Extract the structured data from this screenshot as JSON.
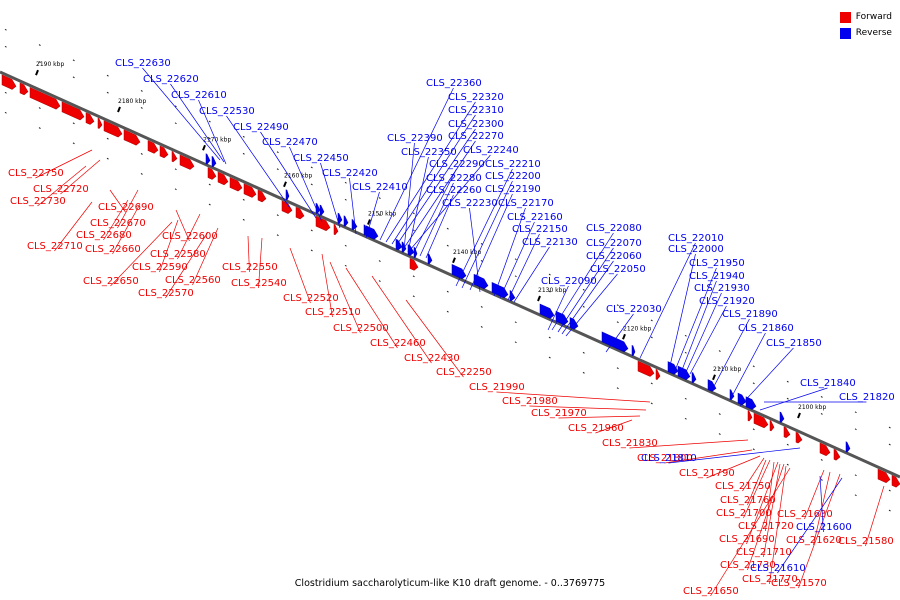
{
  "caption": "Clostridium saccharolyticum-like K10 draft genome. - 0..3769775",
  "legend": [
    {
      "label": "Forward",
      "color": "#ee0000"
    },
    {
      "label": "Reverse",
      "color": "#0000ee"
    }
  ],
  "colors": {
    "forward": "#ee0000",
    "reverse": "#0000ee",
    "backbone": "#555555"
  },
  "kbp_ticks": [
    "2190 kbp",
    "2180 kbp",
    "2170 kbp",
    "2160 kbp",
    "2150 kbp",
    "2140 kbp",
    "2130 kbp",
    "2120 kbp",
    "2110 kbp",
    "2100 kbp"
  ],
  "genes_forward": [
    "CLS_22750",
    "CLS_22720",
    "CLS_22730",
    "CLS_22690",
    "CLS_22670",
    "CLS_22680",
    "CLS_22710",
    "CLS_22660",
    "CLS_22600",
    "CLS_22580",
    "CLS_22590",
    "CLS_22650",
    "CLS_22560",
    "CLS_22570",
    "CLS_22550",
    "CLS_22540",
    "CLS_22520",
    "CLS_22510",
    "CLS_22500",
    "CLS_22460",
    "CLS_22430",
    "CLS_22250",
    "CLS_21990",
    "CLS_21980",
    "CLS_21970",
    "CLS_21960",
    "CLS_21830",
    "CLS_21800",
    "CLS_21790",
    "CLS_21750",
    "CLS_21760",
    "CLS_21700",
    "CLS_21720",
    "CLS_21690",
    "CLS_21710",
    "CLS_21730",
    "CLS_21770",
    "CLS_21650",
    "CLS_21630",
    "CLS_21620",
    "CLS_21570",
    "CLS_21580"
  ],
  "genes_reverse": [
    "CLS_22630",
    "CLS_22620",
    "CLS_22610",
    "CLS_22530",
    "CLS_22490",
    "CLS_22470",
    "CLS_22450",
    "CLS_22420",
    "CLS_22410",
    "CLS_22390",
    "CLS_22350",
    "CLS_22360",
    "CLS_22320",
    "CLS_22310",
    "CLS_22300",
    "CLS_22270",
    "CLS_22240",
    "CLS_22290",
    "CLS_22210",
    "CLS_22280",
    "CLS_22200",
    "CLS_22260",
    "CLS_22190",
    "CLS_22230",
    "CLS_22170",
    "CLS_22160",
    "CLS_22150",
    "CLS_22130",
    "CLS_22080",
    "CLS_22070",
    "CLS_22060",
    "CLS_22050",
    "CLS_22090",
    "CLS_22030",
    "CLS_22010",
    "CLS_22000",
    "CLS_21950",
    "CLS_21940",
    "CLS_21930",
    "CLS_21920",
    "CLS_21890",
    "CLS_21860",
    "CLS_21850",
    "CLS_21840",
    "CLS_21820",
    "CLS_21810",
    "CLS_21600",
    "CLS_21610"
  ]
}
